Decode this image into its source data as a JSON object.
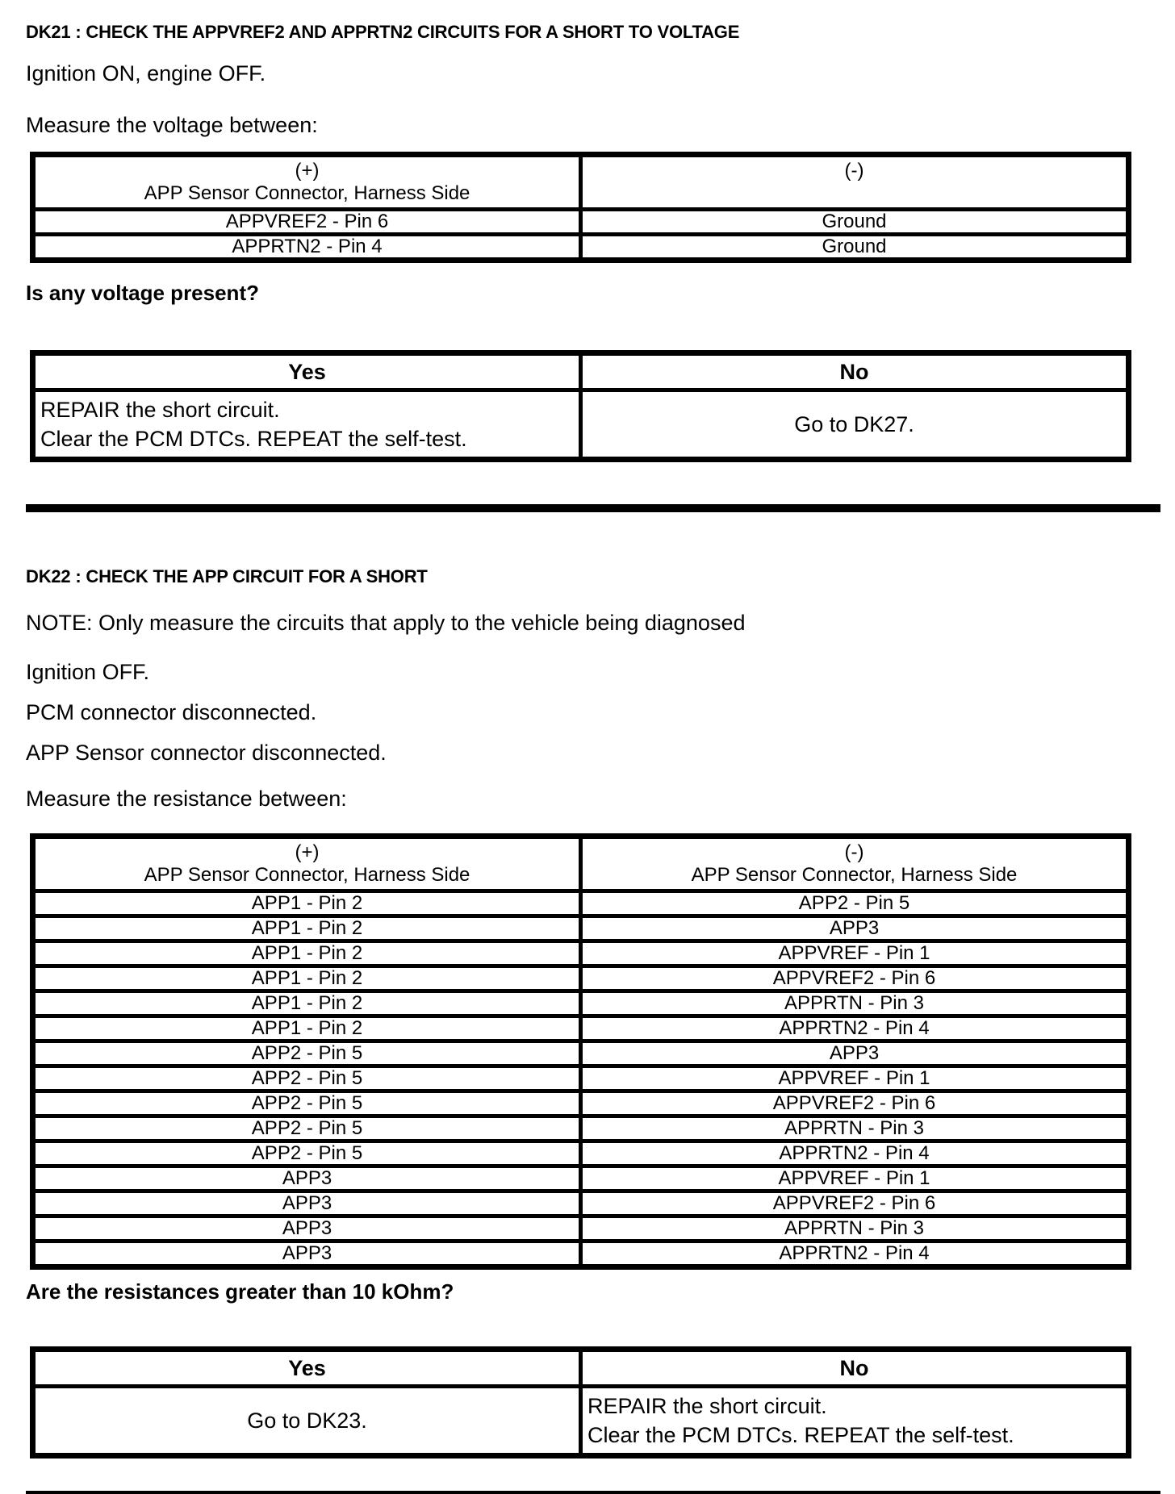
{
  "dk21": {
    "heading": "DK21 : CHECK THE APPVREF2 AND APPRTN2 CIRCUITS FOR A SHORT TO VOLTAGE",
    "step1": "Ignition ON, engine OFF.",
    "step2": "Measure the voltage between:",
    "table": {
      "plus_label": "(+)",
      "plus_sub": "APP Sensor Connector, Harness Side",
      "minus_label": "(-)",
      "minus_sub": "",
      "rows": [
        [
          "APPVREF2 - Pin 6",
          "Ground"
        ],
        [
          "APPRTN2 - Pin 4",
          "Ground"
        ]
      ]
    },
    "question": "Is any voltage present?",
    "decision": {
      "yes_header": "Yes",
      "no_header": "No",
      "yes_line1": "REPAIR the short circuit.",
      "yes_line2": "Clear the PCM DTCs. REPEAT the self-test.",
      "no_text": "Go to DK27."
    }
  },
  "dk22": {
    "heading": "DK22 : CHECK THE APP CIRCUIT FOR A SHORT",
    "note": "NOTE: Only measure the circuits that apply to the vehicle being diagnosed",
    "step1": "Ignition OFF.",
    "step2": "PCM connector disconnected.",
    "step3": "APP Sensor connector disconnected.",
    "step4": "Measure the resistance between:",
    "table": {
      "plus_label": "(+)",
      "plus_sub": "APP Sensor Connector, Harness Side",
      "minus_label": "(-)",
      "minus_sub": "APP Sensor Connector, Harness Side",
      "rows": [
        [
          "APP1 - Pin 2",
          "APP2 - Pin 5"
        ],
        [
          "APP1 - Pin 2",
          "APP3"
        ],
        [
          "APP1 - Pin 2",
          "APPVREF - Pin 1"
        ],
        [
          "APP1 - Pin 2",
          "APPVREF2 - Pin 6"
        ],
        [
          "APP1 - Pin 2",
          "APPRTN - Pin 3"
        ],
        [
          "APP1 - Pin 2",
          "APPRTN2 - Pin 4"
        ],
        [
          "APP2 - Pin 5",
          "APP3"
        ],
        [
          "APP2 - Pin 5",
          "APPVREF - Pin 1"
        ],
        [
          "APP2 - Pin 5",
          "APPVREF2 - Pin 6"
        ],
        [
          "APP2 - Pin 5",
          "APPRTN - Pin 3"
        ],
        [
          "APP2 - Pin 5",
          "APPRTN2 - Pin 4"
        ],
        [
          "APP3",
          "APPVREF - Pin 1"
        ],
        [
          "APP3",
          "APPVREF2 - Pin 6"
        ],
        [
          "APP3",
          "APPRTN - Pin 3"
        ],
        [
          "APP3",
          "APPRTN2 - Pin 4"
        ]
      ]
    },
    "question": "Are the resistances greater than 10 kOhm?",
    "decision": {
      "yes_header": "Yes",
      "no_header": "No",
      "yes_text": "Go to DK23.",
      "no_line1": "REPAIR the short circuit.",
      "no_line2": "Clear the PCM DTCs. REPEAT the self-test."
    }
  }
}
